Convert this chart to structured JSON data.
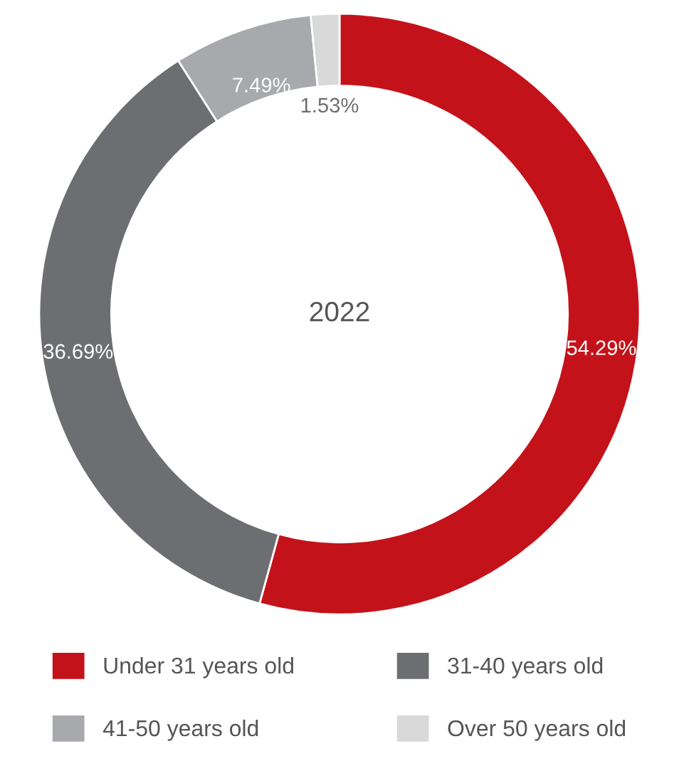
{
  "chart_data": {
    "type": "donut",
    "categories": [
      "Under 31 years old",
      "31-40 years old",
      "41-50 years old",
      "Over 50 years old"
    ],
    "values": [
      54.29,
      36.69,
      7.49,
      1.53
    ],
    "colors": [
      "#c4121a",
      "#6d6e71",
      "#a7a9ac",
      "#d9d9d9"
    ],
    "value_labels": [
      "54.29%",
      "36.69%",
      "7.49%",
      "1.53%"
    ],
    "annotations": [
      "2022"
    ],
    "legend": "bottom"
  }
}
